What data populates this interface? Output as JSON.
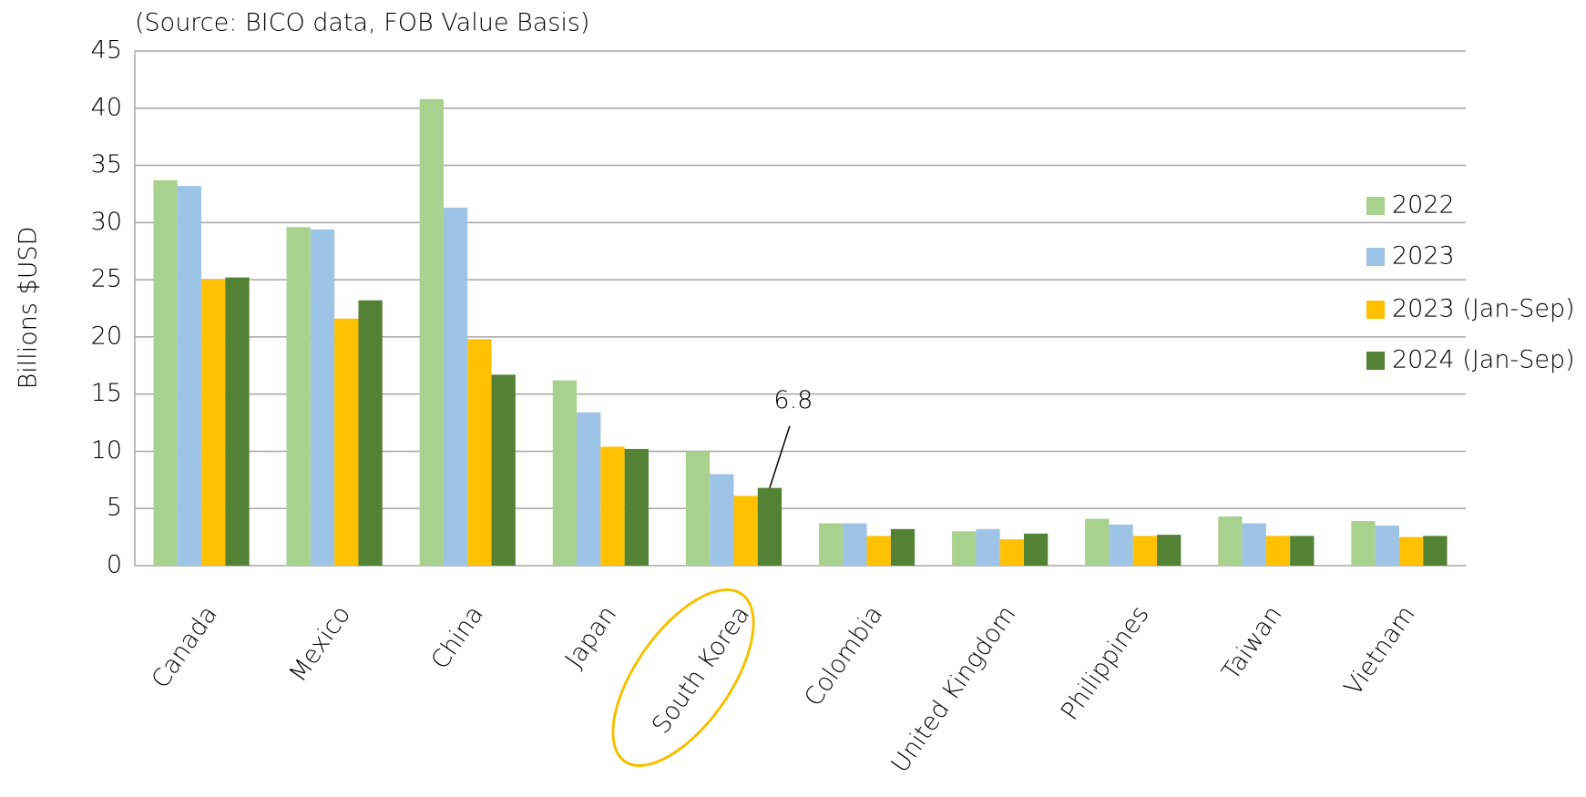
{
  "chart_data": {
    "type": "bar",
    "subtitle": "(Source: BICO data, FOB Value Basis)",
    "y_label": "Billions $USD",
    "categories": [
      "Canada",
      "Mexico",
      "China",
      "Japan",
      "South Korea",
      "Colombia",
      "United Kingdom",
      "Philippines",
      "Taiwan",
      "Vietnam"
    ],
    "series": [
      {
        "name": "2022",
        "color": "#a9d18e",
        "values": [
          33.7,
          29.6,
          40.8,
          16.2,
          10.0,
          3.7,
          3.0,
          4.1,
          4.3,
          3.9
        ]
      },
      {
        "name": "2023",
        "color": "#9dc3e6",
        "values": [
          33.2,
          29.4,
          31.3,
          13.4,
          8.0,
          3.7,
          3.2,
          3.6,
          3.7,
          3.5
        ]
      },
      {
        "name": "2023 (Jan-Sep)",
        "color": "#ffc000",
        "values": [
          25.0,
          21.6,
          19.8,
          10.4,
          6.1,
          2.6,
          2.3,
          2.6,
          2.6,
          2.5
        ]
      },
      {
        "name": "2024 (Jan-Sep)",
        "color": "#548235",
        "values": [
          25.2,
          23.2,
          16.7,
          10.2,
          6.8,
          3.2,
          2.8,
          2.7,
          2.6,
          2.6
        ]
      }
    ],
    "ylim": [
      0,
      45
    ],
    "yticks": [
      0,
      5,
      10,
      15,
      20,
      25,
      30,
      35,
      40,
      45
    ],
    "grid": true,
    "legend": "right"
  }
}
